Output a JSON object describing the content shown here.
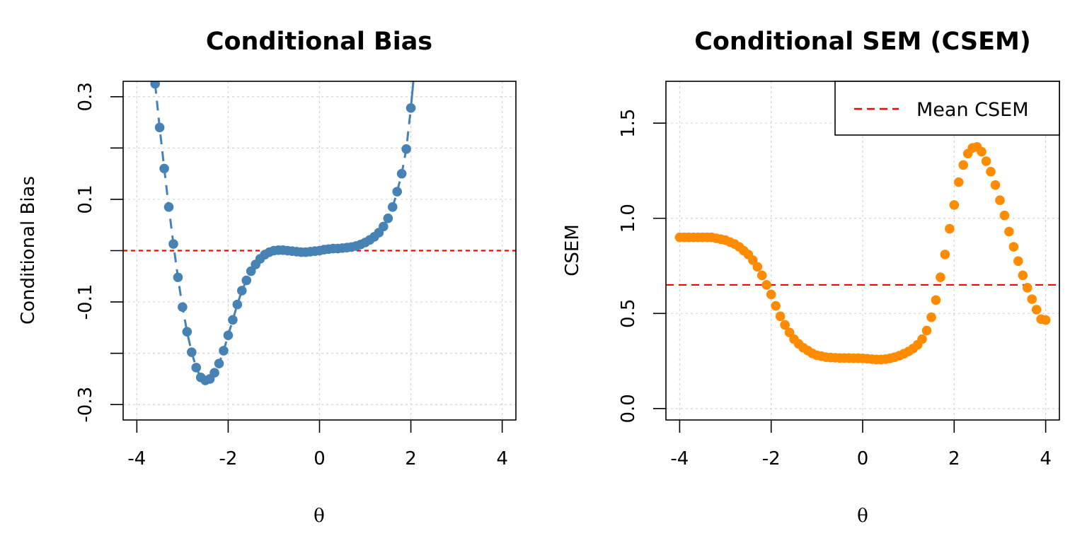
{
  "chart_data": [
    {
      "type": "scatter",
      "title": "Conditional Bias",
      "xlabel": "θ",
      "ylabel": "Conditional Bias",
      "xlim": [
        -4.3,
        4.3
      ],
      "ylim": [
        -0.33,
        0.33
      ],
      "x_ticks": [
        -4,
        -2,
        0,
        2,
        4
      ],
      "x_tick_labels": [
        "-4",
        "-2",
        "0",
        "2",
        "4"
      ],
      "y_ticks": [
        -0.3,
        -0.2,
        -0.1,
        0.0,
        0.1,
        0.2,
        0.3
      ],
      "y_tick_labels": [
        "-0.3",
        "",
        "-0.1",
        "",
        "0.1",
        "",
        "0.3"
      ],
      "grid": true,
      "colors": {
        "points": "#4682b4",
        "reference": "#ff0000"
      },
      "reference_line_y": 0.0,
      "series": [
        {
          "x": [
            -3.6,
            -3.5,
            -3.4,
            -3.3,
            -3.2,
            -3.1,
            -3.0,
            -2.9,
            -2.8,
            -2.7,
            -2.6,
            -2.5,
            -2.4,
            -2.3,
            -2.2,
            -2.1,
            -2.0,
            -1.9,
            -1.8,
            -1.7,
            -1.6,
            -1.5,
            -1.4,
            -1.3,
            -1.2,
            -1.1,
            -1.0,
            -0.9,
            -0.8,
            -0.7,
            -0.6,
            -0.5,
            -0.4,
            -0.3,
            -0.2,
            -0.1,
            0.0,
            0.1,
            0.2,
            0.3,
            0.4,
            0.5,
            0.6,
            0.7,
            0.8,
            0.9,
            1.0,
            1.1,
            1.2,
            1.3,
            1.4,
            1.5,
            1.6,
            1.7,
            1.8,
            1.9,
            2.0
          ],
          "y": [
            0.325,
            0.24,
            0.16,
            0.085,
            0.013,
            -0.052,
            -0.11,
            -0.158,
            -0.198,
            -0.228,
            -0.247,
            -0.253,
            -0.25,
            -0.238,
            -0.22,
            -0.195,
            -0.165,
            -0.135,
            -0.105,
            -0.078,
            -0.058,
            -0.04,
            -0.027,
            -0.016,
            -0.008,
            -0.003,
            0.0,
            0.001,
            0.001,
            0.0,
            -0.001,
            -0.002,
            -0.003,
            -0.003,
            -0.002,
            -0.001,
            0.0,
            0.002,
            0.003,
            0.004,
            0.004,
            0.005,
            0.006,
            0.007,
            0.009,
            0.012,
            0.016,
            0.021,
            0.027,
            0.035,
            0.047,
            0.063,
            0.085,
            0.115,
            0.15,
            0.198,
            0.278
          ]
        }
      ]
    },
    {
      "type": "scatter",
      "title": "Conditional SEM (CSEM)",
      "xlabel": "θ",
      "ylabel": "CSEM",
      "xlim": [
        -4.3,
        4.3
      ],
      "ylim": [
        -0.06,
        1.72
      ],
      "x_ticks": [
        -4,
        -2,
        0,
        2,
        4
      ],
      "x_tick_labels": [
        "-4",
        "-2",
        "0",
        "2",
        "4"
      ],
      "y_ticks": [
        0.0,
        0.5,
        1.0,
        1.5
      ],
      "y_tick_labels": [
        "0.0",
        "0.5",
        "1.0",
        "1.5"
      ],
      "grid": true,
      "colors": {
        "points": "#ff8c00",
        "mean_line": "#ff0000"
      },
      "mean_line_y": 0.65,
      "legend": {
        "position": "top-right",
        "entries": [
          "Mean CSEM"
        ]
      },
      "series": [
        {
          "x": [
            -4.0,
            -3.9,
            -3.8,
            -3.7,
            -3.6,
            -3.5,
            -3.4,
            -3.3,
            -3.2,
            -3.1,
            -3.0,
            -2.9,
            -2.8,
            -2.7,
            -2.6,
            -2.5,
            -2.4,
            -2.3,
            -2.2,
            -2.1,
            -2.0,
            -1.9,
            -1.8,
            -1.7,
            -1.6,
            -1.5,
            -1.4,
            -1.3,
            -1.2,
            -1.1,
            -1.0,
            -0.9,
            -0.8,
            -0.7,
            -0.6,
            -0.5,
            -0.4,
            -0.3,
            -0.2,
            -0.1,
            0.0,
            0.1,
            0.2,
            0.3,
            0.4,
            0.5,
            0.6,
            0.7,
            0.8,
            0.9,
            1.0,
            1.1,
            1.2,
            1.3,
            1.4,
            1.5,
            1.6,
            1.7,
            1.8,
            1.9,
            2.0,
            2.1,
            2.2,
            2.3,
            2.4,
            2.5,
            2.6,
            2.7,
            2.8,
            2.9,
            3.0,
            3.1,
            3.2,
            3.3,
            3.4,
            3.5,
            3.6,
            3.7,
            3.8,
            3.9,
            4.0
          ],
          "y": [
            0.9,
            0.9,
            0.9,
            0.9,
            0.9,
            0.9,
            0.9,
            0.9,
            0.895,
            0.89,
            0.885,
            0.875,
            0.865,
            0.85,
            0.83,
            0.81,
            0.78,
            0.745,
            0.7,
            0.65,
            0.6,
            0.54,
            0.485,
            0.44,
            0.4,
            0.365,
            0.34,
            0.32,
            0.305,
            0.29,
            0.28,
            0.275,
            0.27,
            0.268,
            0.267,
            0.266,
            0.266,
            0.266,
            0.265,
            0.265,
            0.264,
            0.262,
            0.26,
            0.258,
            0.258,
            0.26,
            0.264,
            0.27,
            0.278,
            0.288,
            0.3,
            0.315,
            0.335,
            0.365,
            0.41,
            0.48,
            0.57,
            0.69,
            0.81,
            0.945,
            1.07,
            1.19,
            1.28,
            1.34,
            1.37,
            1.375,
            1.35,
            1.3,
            1.245,
            1.175,
            1.095,
            1.015,
            0.93,
            0.85,
            0.775,
            0.7,
            0.635,
            0.575,
            0.52,
            0.47,
            0.465
          ]
        }
      ]
    }
  ]
}
